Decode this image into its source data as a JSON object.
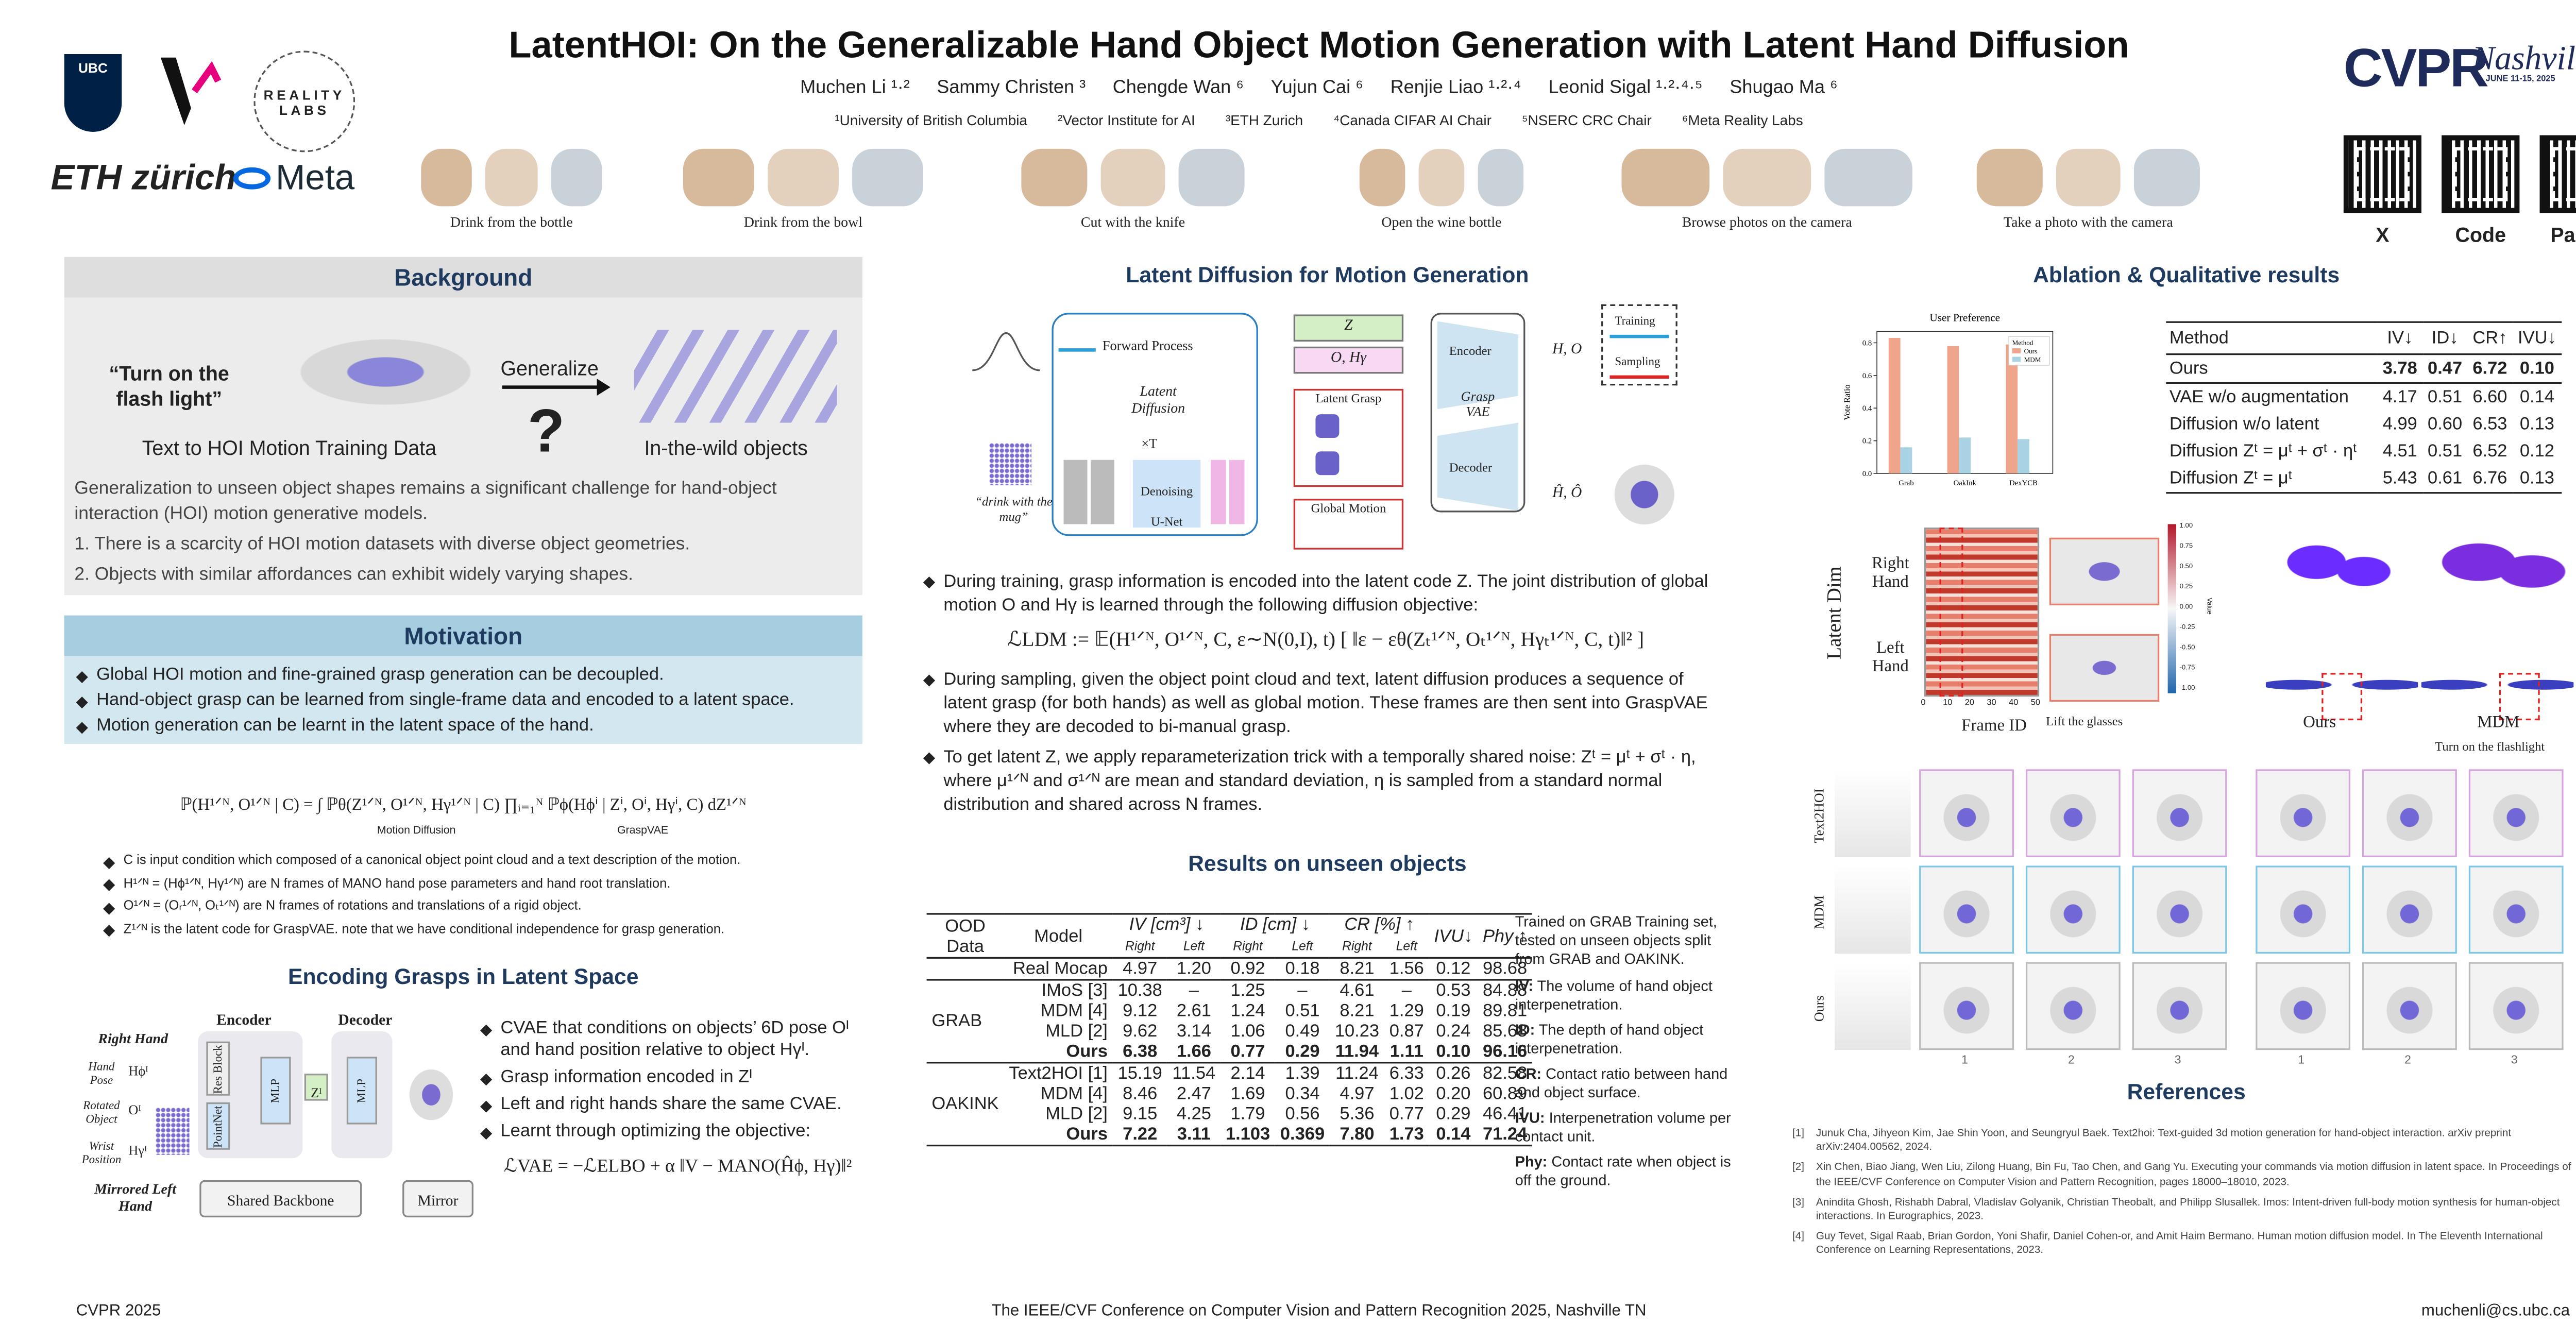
{
  "header": {
    "title": "LatentHOI: On the Generalizable Hand Object Motion Generation with Latent Hand Diffusion",
    "authors": [
      "Muchen Li ¹·²",
      "Sammy Christen ³",
      "Chengde Wan ⁶",
      "Yujun Cai ⁶",
      "Renjie Liao ¹·²·⁴",
      "Leonid Sigal ¹·²·⁴·⁵",
      "Shugao Ma ⁶"
    ],
    "affiliations": [
      "¹University of British Columbia",
      "²Vector Institute for AI",
      "³ETH Zurich",
      "⁴Canada CIFAR AI Chair",
      "⁵NSERC CRC Chair",
      "⁶Meta Reality Labs"
    ],
    "logos": [
      "UBC",
      "REALITY LABS",
      "ETH zürich",
      "Meta"
    ],
    "teaser_captions": [
      "Drink from the bottle",
      "Drink from the bowl",
      "Cut with the knife",
      "Open the wine bottle",
      "Browse photos on the camera",
      "Take a photo with the camera"
    ],
    "conference_logo": {
      "name": "CVPR",
      "city": "Nashville",
      "dates": "JUNE 11-15, 2025"
    },
    "links": [
      "X",
      "Code",
      "Paper"
    ]
  },
  "background": {
    "title": "Background",
    "quote": "“Turn on the flash light”",
    "arrow_label": "Generalize",
    "question": "?",
    "left_caption": "Text to HOI Motion Training Data",
    "right_caption": "In-the-wild objects",
    "text": "Generalization to unseen object shapes remains a significant challenge for hand-object interaction (HOI) motion generative models.",
    "items": [
      "1. There is a scarcity of HOI motion datasets with diverse object geometries.",
      "2. Objects with similar affordances can exhibit widely varying shapes."
    ]
  },
  "motivation": {
    "title": "Motivation",
    "items": [
      "Global HOI motion and fine-grained grasp generation can be decoupled.",
      "Hand-object grasp can be learned from single-frame data and encoded to a latent space.",
      "Motion generation can be learnt in the latent space of the hand."
    ]
  },
  "factorization": {
    "formula": "ℙ(H¹ᐟᴺ, O¹ᐟᴺ | C) = ∫ ℙθ(Z¹ᐟᴺ, O¹ᐟᴺ, Hγ¹ᐟᴺ | C) ∏ᵢ₌₁ᴺ ℙϕ(Hϕⁱ | Zⁱ, Oⁱ, Hγⁱ, C) dZ¹ᐟᴺ",
    "brace_labels": [
      "Motion Diffusion",
      "GraspVAE"
    ],
    "definitions": [
      "C is input condition which composed of a canonical object point cloud and a text description of the motion.",
      "H¹ᐟᴺ = (Hϕ¹ᐟᴺ, Hγ¹ᐟᴺ) are N frames of MANO hand pose parameters and hand root translation.",
      "O¹ᐟᴺ = (Oᵣ¹ᐟᴺ, Oₜ¹ᐟᴺ) are N frames of rotations and translations of a rigid object.",
      "Z¹ᐟᴺ is the latent code for GraspVAE. note that we have conditional independence for grasp generation."
    ]
  },
  "encoding": {
    "title": "Encoding Grasps in Latent Space",
    "diagram": {
      "right_hand": "Right Hand",
      "inputs": [
        "Hand Pose",
        "Rotated Object",
        "Wrist Position"
      ],
      "symbols": [
        "Hϕᴵ",
        "Oᴵ",
        "Hγᴵ"
      ],
      "left_hand": "Mirrored Left Hand",
      "encoder": "Encoder",
      "decoder": "Decoder",
      "res_block": "Res Block",
      "pointnet": "PointNet",
      "mlp": "MLP",
      "latent": "Zᴵ",
      "backbone": "Shared Backbone",
      "mirror": "Mirror"
    },
    "items": [
      "CVAE that conditions on objects’ 6D pose Oᴵ and hand position relative to object Hγᴵ.",
      "Grasp information encoded in Zᴵ",
      "Left and right hands share the same CVAE.",
      "Learnt through optimizing the objective:"
    ],
    "formula": "ℒVAE = −ℒELBO + α ‖V − MANO(Ĥϕ, Hγ)‖²"
  },
  "latent_diffusion": {
    "title": "Latent Diffusion for Motion Generation",
    "diagram": {
      "forward": "Forward Process",
      "latent_diffusion": "Latent Diffusion",
      "repeat": "×T",
      "unet": "Denoising U-Net",
      "z": "Z",
      "o_h": "O, Hγ",
      "latent_grasp": "Latent Grasp",
      "global_motion": "Global Motion",
      "encoder": "Encoder",
      "vae": "Grasp VAE",
      "decoder": "Decoder",
      "input": "H, O",
      "output": "Ĥ, Ô",
      "training": "Training",
      "sampling": "Sampling",
      "prompt": "“drink with the mug”"
    },
    "items": [
      "During training, grasp information is encoded into the latent code Z. The joint distribution of global motion O and Hγ is learned through the following diffusion objective:",
      "During sampling, given the object point cloud and text, latent diffusion produces a sequence of latent grasp (for both hands) as well as global motion.  These frames are then sent into GraspVAE where they are decoded to bi-manual grasp.",
      "To get latent Z, we apply reparameterization trick with a temporally shared noise: Zᵗ = μᵗ + σᵗ · η, where μ¹ᐟᴺ and σ¹ᐟᴺ are mean and standard deviation, η is sampled from a standard normal distribution and shared across N frames."
    ],
    "formula": "ℒLDM := 𝔼(H¹ᐟᴺ, O¹ᐟᴺ, C, ε∼N(0,I), t) [ ‖ε − εθ(Zₜ¹ᐟᴺ, Oₜ¹ᐟᴺ, Hγₜ¹ᐟᴺ, C, t)‖² ]"
  },
  "results": {
    "title": "Results on unseen objects",
    "columns": [
      "OOD Data",
      "Model",
      "IV [cm³] ↓",
      "ID [cm] ↓",
      "CR [%] ↑",
      "IVU↓",
      "Phy ↑"
    ],
    "subcolumns": [
      "Right",
      "Left"
    ],
    "reference_row": {
      "model": "Real Mocap",
      "values": [
        "4.97",
        "1.20",
        "0.92",
        "0.18",
        "8.21",
        "1.56",
        "0.12",
        "98.68"
      ]
    },
    "groups": [
      {
        "name": "GRAB",
        "rows": [
          {
            "model": "IMoS [3]",
            "values": [
              "10.38",
              "–",
              "1.25",
              "–",
              "4.61",
              "–",
              "0.53",
              "84.88"
            ]
          },
          {
            "model": "MDM [4]",
            "values": [
              "9.12",
              "2.61",
              "1.24",
              "0.51",
              "8.21",
              "1.29",
              "0.19",
              "89.81"
            ]
          },
          {
            "model": "MLD [2]",
            "values": [
              "9.62",
              "3.14",
              "1.06",
              "0.49",
              "10.23",
              "0.87",
              "0.24",
              "85.68"
            ]
          },
          {
            "model": "Ours",
            "values": [
              "6.38",
              "1.66",
              "0.77",
              "0.29",
              "11.94",
              "1.11",
              "0.10",
              "96.16"
            ]
          }
        ]
      },
      {
        "name": "OAKINK",
        "rows": [
          {
            "model": "Text2HOI [1]",
            "values": [
              "15.19",
              "11.54",
              "2.14",
              "1.39",
              "11.24",
              "6.33",
              "0.26",
              "82.58"
            ]
          },
          {
            "model": "MDM [4]",
            "values": [
              "8.46",
              "2.47",
              "1.69",
              "0.34",
              "4.97",
              "1.02",
              "0.20",
              "60.89"
            ]
          },
          {
            "model": "MLD [2]",
            "values": [
              "9.15",
              "4.25",
              "1.79",
              "0.56",
              "5.36",
              "0.77",
              "0.29",
              "46.41"
            ]
          },
          {
            "model": "Ours",
            "values": [
              "7.22",
              "3.11",
              "1.103",
              "0.369",
              "7.80",
              "1.73",
              "0.14",
              "71.24"
            ]
          }
        ]
      }
    ],
    "note": "Trained on GRAB Training set, tested on unseen objects split from GRAB and OAKINK.",
    "metrics": [
      {
        "name": "IV:",
        "text": "The volume of hand object interpenetration."
      },
      {
        "name": "ID:",
        "text": "The depth of hand object interpenetration."
      },
      {
        "name": "CR:",
        "text": "Contact ratio between hand and object surface."
      },
      {
        "name": "IVU:",
        "text": "Interpenetration volume per contact unit."
      },
      {
        "name": "Phy:",
        "text": "Contact rate when object is off the ground."
      }
    ]
  },
  "ablation": {
    "title": "Ablation & Qualitative results",
    "user_preference": {
      "type": "bar",
      "title": "User Preference",
      "ylabel": "Vote Ratio",
      "categories": [
        "Grab",
        "OakInk",
        "DexYCB"
      ],
      "legend_title": "Method",
      "series": [
        {
          "name": "Ours",
          "color": "#efa58b",
          "values": [
            0.83,
            0.78,
            0.79
          ]
        },
        {
          "name": "MDM",
          "color": "#a9d3e4",
          "values": [
            0.16,
            0.22,
            0.21
          ]
        }
      ],
      "ylim": [
        0,
        0.87
      ],
      "yticks": [
        {
          "value": 0,
          "label": "0.0"
        },
        {
          "value": 0.2,
          "label": "0.2"
        },
        {
          "value": 0.4,
          "label": "0.4"
        },
        {
          "value": 0.6,
          "label": "0.6"
        },
        {
          "value": 0.8,
          "label": "0.8"
        }
      ]
    },
    "table": {
      "columns": [
        "Method",
        "IV↓",
        "ID↓",
        "CR↑",
        "IVU↓"
      ],
      "rows": [
        {
          "method": "Ours",
          "values": [
            "3.78",
            "0.47",
            "6.72",
            "0.10"
          ]
        },
        {
          "method": "VAE w/o augmentation",
          "values": [
            "4.17",
            "0.51",
            "6.60",
            "0.14"
          ]
        },
        {
          "method": "Diffusion w/o latent",
          "values": [
            "4.99",
            "0.60",
            "6.53",
            "0.13"
          ]
        },
        {
          "method": "Diffusion Zᵗ = μᵗ + σᵗ · ηᵗ",
          "values": [
            "4.51",
            "0.51",
            "6.52",
            "0.12"
          ]
        },
        {
          "method": "Diffusion Zᵗ = μᵗ",
          "values": [
            "5.43",
            "0.61",
            "6.76",
            "0.13"
          ]
        }
      ]
    },
    "heatmap": {
      "ylabel": "Latent Dim",
      "row_labels": [
        "Right Hand",
        "Left Hand"
      ],
      "xlabel": "Frame ID",
      "caption": "Lift the glasses",
      "xticks": [
        "0",
        "10",
        "20",
        "30",
        "40",
        "50"
      ],
      "colorbar_label": "Value",
      "colorbar_ticks": [
        "1.00",
        "0.75",
        "0.50",
        "0.25",
        "0.00",
        "-0.25",
        "-0.50",
        "-0.75",
        "-1.00"
      ]
    },
    "comparison": {
      "methods": [
        "Ours",
        "MDM"
      ],
      "caption": "Turn on the flashlight"
    },
    "qualitative": {
      "rows": [
        "Text2HOI",
        "MDM",
        "Ours"
      ],
      "columns": [
        "1",
        "2",
        "3",
        "1",
        "2",
        "3"
      ]
    }
  },
  "references": {
    "title": "References",
    "items": [
      {
        "number": "[1]",
        "text": "Junuk Cha, Jihyeon Kim, Jae Shin Yoon, and Seungryul Baek. Text2hoi: Text-guided 3d motion generation for hand-object interaction. arXiv preprint arXiv:2404.00562, 2024."
      },
      {
        "number": "[2]",
        "text": "Xin Chen, Biao Jiang, Wen Liu, Zilong Huang, Bin Fu, Tao Chen, and Gang Yu. Executing your commands via motion diffusion in latent space. In Proceedings of the IEEE/CVF Conference on Computer Vision and Pattern Recognition, pages 18000–18010, 2023."
      },
      {
        "number": "[3]",
        "text": "Anindita Ghosh, Rishabh Dabral, Vladislav Golyanik, Christian Theobalt, and Philipp Slusallek. Imos: Intent-driven full-body motion synthesis for human-object interactions. In Eurographics, 2023."
      },
      {
        "number": "[4]",
        "text": "Guy Tevet, Sigal Raab, Brian Gordon, Yoni Shafir, Daniel Cohen-or, and Amit Haim Bermano. Human motion diffusion model. In The Eleventh International Conference on Learning Representations, 2023."
      }
    ]
  },
  "footer": {
    "left": "CVPR 2025",
    "center": "The IEEE/CVF Conference on Computer Vision and Pattern Recognition 2025, Nashville TN",
    "right": "muchenli@cs.ubc.ca"
  }
}
